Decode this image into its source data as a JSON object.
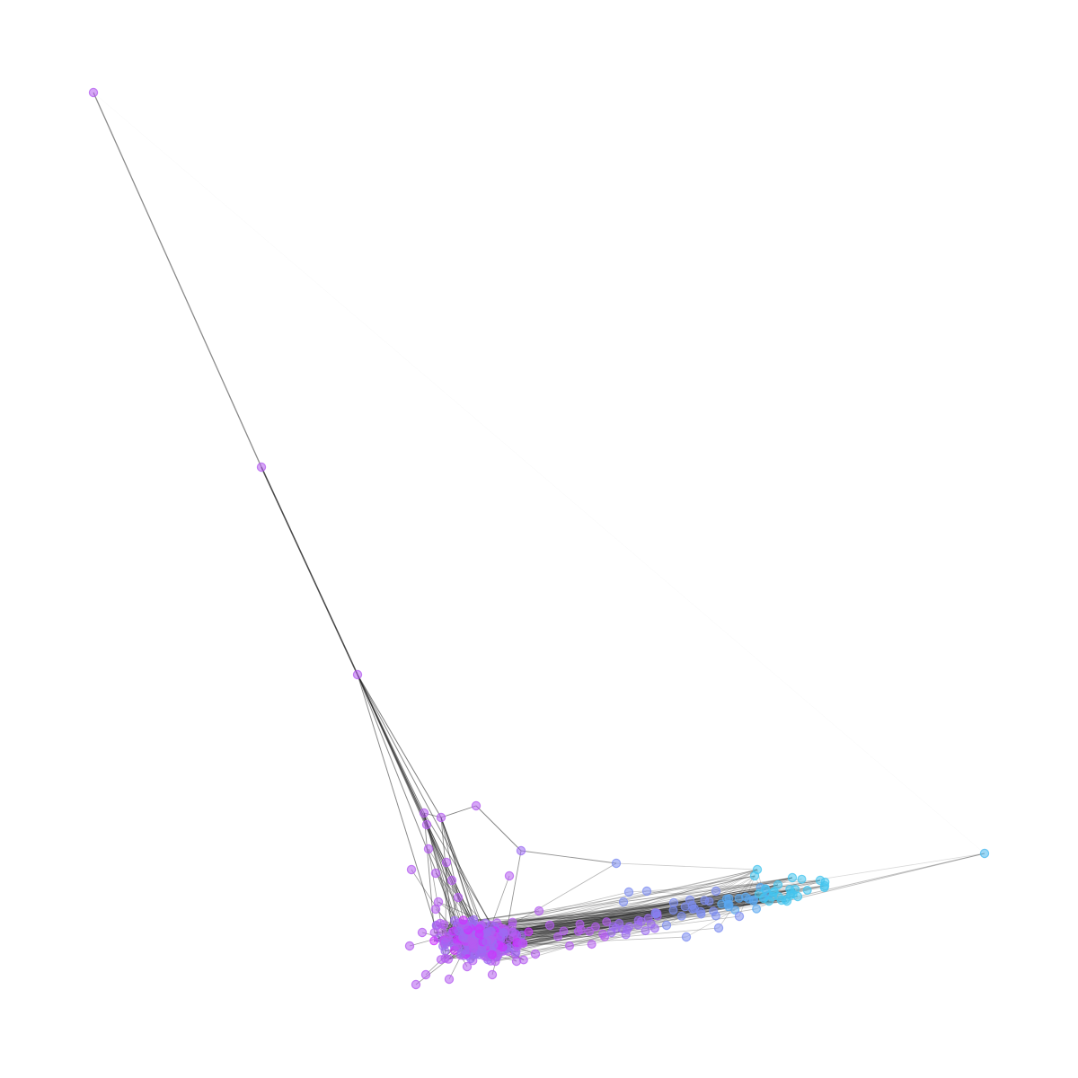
{
  "diagram": {
    "type": "network-graph",
    "title": "",
    "labels_shown": false,
    "colors": {
      "background": "#ffffff",
      "edge": "#2b2b2b",
      "node_purple": "#b45cf0",
      "node_violet": "#9c6cf2",
      "node_blue": "#7c8cf0",
      "node_cyan": "#4ab8ee"
    },
    "node_color_scale": [
      "#cc33ff",
      "#b45cf0",
      "#9c6cf2",
      "#7c8cf0",
      "#5aa8f0",
      "#44c4ee"
    ]
  }
}
